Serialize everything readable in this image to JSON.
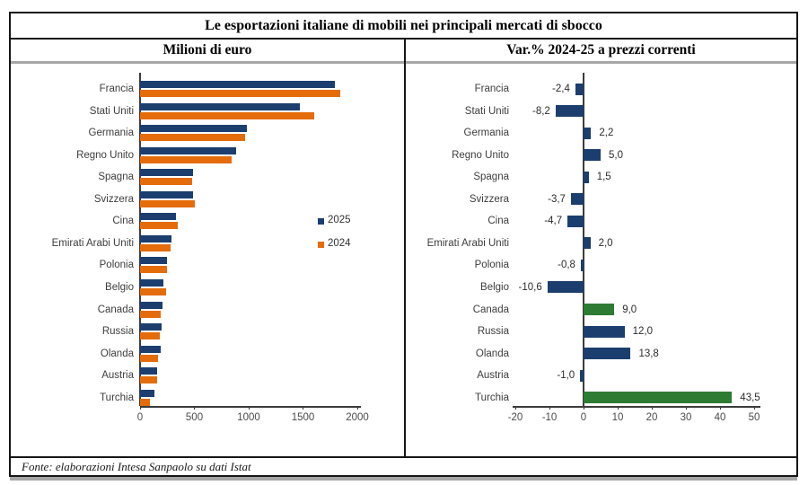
{
  "frame": {
    "title": "Le esportazioni italiane di mobili nei principali mercati di sbocco",
    "left_header": "Milioni di euro",
    "right_header": "Var.% 2024-25 a prezzi correnti",
    "footer": "Fonte: elaborazioni Intesa Sanpaolo su dati Istat"
  },
  "colors": {
    "navy": "#1b3e6f",
    "orange": "#e56c0a",
    "green": "#2e7b33",
    "axis": "#3c3c3c",
    "tick_text": "#4a4a4a",
    "label_text": "#3d3d3d",
    "value_text": "#2b2b2b",
    "border_black": "#161616",
    "border_gray": "#a6a6a6"
  },
  "chart_data": [
    {
      "type": "bar",
      "orientation": "horizontal",
      "panel": "left",
      "title": "Milioni di euro",
      "categories": [
        "Francia",
        "Stati Uniti",
        "Germania",
        "Regno Unito",
        "Spagna",
        "Svizzera",
        "Cina",
        "Emirati Arabi Uniti",
        "Polonia",
        "Belgio",
        "Canada",
        "Russia",
        "Olanda",
        "Austria",
        "Turchia"
      ],
      "series": [
        {
          "name": "2025",
          "color": "#1b3e6f",
          "values": [
            1795,
            1470,
            987,
            887,
            485,
            486,
            334,
            289,
            247,
            215,
            207,
            200,
            192,
            154,
            133
          ]
        },
        {
          "name": "2024",
          "color": "#e56c0a",
          "values": [
            1840,
            1600,
            965,
            845,
            478,
            505,
            350,
            283,
            249,
            240,
            190,
            178,
            169,
            156,
            93
          ]
        }
      ],
      "xlim": [
        0,
        2000
      ],
      "xticks": [
        0,
        500,
        1000,
        1500,
        2000
      ],
      "legend": [
        "2025",
        "2024"
      ],
      "legend_position": "center-right",
      "grid": false
    },
    {
      "type": "bar",
      "orientation": "horizontal",
      "panel": "right",
      "title": "Var.% 2024-25 a prezzi correnti",
      "categories": [
        "Francia",
        "Stati Uniti",
        "Germania",
        "Regno Unito",
        "Spagna",
        "Svizzera",
        "Cina",
        "Emirati Arabi Uniti",
        "Polonia",
        "Belgio",
        "Canada",
        "Russia",
        "Olanda",
        "Austria",
        "Turchia"
      ],
      "values": [
        -2.4,
        -8.2,
        2.2,
        5.0,
        1.5,
        -3.7,
        -4.7,
        2.0,
        -0.8,
        -10.6,
        9.0,
        12.0,
        13.8,
        -1.0,
        43.5
      ],
      "value_labels": [
        "-2,4",
        "-8,2",
        "2,2",
        "5,0",
        "1,5",
        "-3,7",
        "-4,7",
        "2,0",
        "-0,8",
        "-10,6",
        "9,0",
        "12,0",
        "13,8",
        "-1,0",
        "43,5"
      ],
      "bar_colors": [
        "#1b3e6f",
        "#1b3e6f",
        "#1b3e6f",
        "#1b3e6f",
        "#1b3e6f",
        "#1b3e6f",
        "#1b3e6f",
        "#1b3e6f",
        "#1b3e6f",
        "#1b3e6f",
        "#2e7b33",
        "#1b3e6f",
        "#1b3e6f",
        "#1b3e6f",
        "#2e7b33"
      ],
      "xlim": [
        -20,
        50
      ],
      "xticks": [
        -20,
        -10,
        0,
        10,
        20,
        30,
        40,
        50
      ],
      "grid": false
    }
  ]
}
